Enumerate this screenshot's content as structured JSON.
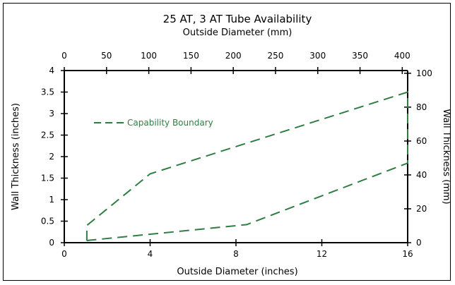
{
  "chart_data": {
    "type": "line",
    "title": "25 AT, 3 AT Tube Availability",
    "xlabel": "Outside Diameter (inches)",
    "x2label": "Outside Diameter (mm)",
    "ylabel": "Wall Thickness (inches)",
    "y2label": "Wall Thickness (mm)",
    "xlim": [
      0,
      16
    ],
    "ylim": [
      0,
      4
    ],
    "x2lim": [
      0,
      406.4
    ],
    "y2lim": [
      0,
      101.6
    ],
    "x_ticks": [
      "0",
      "4",
      "8",
      "12",
      "16"
    ],
    "x_tick_values": [
      0,
      4,
      8,
      12,
      16
    ],
    "y_ticks": [
      "0",
      "0.5",
      "1",
      "1.5",
      "2",
      "2.5",
      "3",
      "3.5",
      "4"
    ],
    "y_tick_values": [
      0,
      0.5,
      1,
      1.5,
      2,
      2.5,
      3,
      3.5,
      4
    ],
    "x2_ticks": [
      "0",
      "50",
      "100",
      "150",
      "200",
      "250",
      "300",
      "350",
      "400"
    ],
    "x2_tick_values": [
      0,
      50,
      100,
      150,
      200,
      250,
      300,
      350,
      400
    ],
    "y2_ticks": [
      "0",
      "20",
      "40",
      "60",
      "80",
      "100"
    ],
    "y2_tick_values": [
      0,
      20,
      40,
      60,
      80,
      100
    ],
    "grid": false,
    "legend": "top-left",
    "series": [
      {
        "name": "Capability Boundary",
        "color": "#2e7d43",
        "style": "dashed",
        "x": [
          1.05,
          1.05,
          4.0,
          16.0,
          16.0,
          8.5,
          1.05
        ],
        "y": [
          0.05,
          0.4,
          1.6,
          3.5,
          1.85,
          0.42,
          0.05
        ]
      }
    ]
  }
}
